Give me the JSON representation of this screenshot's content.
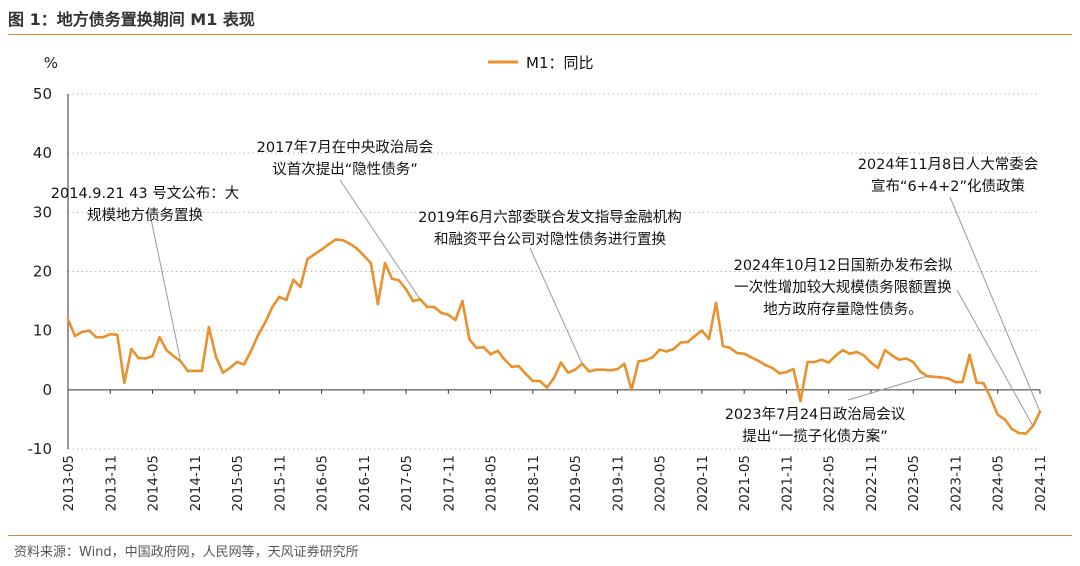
{
  "figure_title": "图 1：地方债务置换期间 M1 表现",
  "source": "资料来源：Wind，中国政府网，人民网等，天风证券研究所",
  "colors": {
    "series": "#e8912d",
    "rule": "#d08a3c",
    "grid": "#bbbbbb",
    "annotation_line": "#999999"
  },
  "chart_data": {
    "type": "line",
    "title": "",
    "xlabel": "",
    "ylabel": "%",
    "ylim": [
      -10,
      50
    ],
    "yticks": [
      50,
      40,
      30,
      20,
      10,
      0,
      -10
    ],
    "xticks": [
      "2013-05",
      "2013-11",
      "2014-05",
      "2014-11",
      "2015-05",
      "2015-11",
      "2016-05",
      "2016-11",
      "2017-05",
      "2017-11",
      "2018-05",
      "2018-11",
      "2019-05",
      "2019-11",
      "2020-05",
      "2020-11",
      "2021-05",
      "2021-11",
      "2022-05",
      "2022-11",
      "2023-05",
      "2023-11",
      "2024-05",
      "2024-11"
    ],
    "grid": "horizontal dotted",
    "legend": {
      "placement": "top-center",
      "entries": [
        "M1：同比"
      ]
    },
    "series": [
      {
        "name": "M1：同比",
        "x": [
          "2013-05",
          "2013-06",
          "2013-07",
          "2013-08",
          "2013-09",
          "2013-10",
          "2013-11",
          "2013-12",
          "2014-01",
          "2014-02",
          "2014-03",
          "2014-04",
          "2014-05",
          "2014-06",
          "2014-07",
          "2014-08",
          "2014-09",
          "2014-10",
          "2014-11",
          "2014-12",
          "2015-01",
          "2015-02",
          "2015-03",
          "2015-04",
          "2015-05",
          "2015-06",
          "2015-07",
          "2015-08",
          "2015-09",
          "2015-10",
          "2015-11",
          "2015-12",
          "2016-01",
          "2016-02",
          "2016-03",
          "2016-04",
          "2016-05",
          "2016-06",
          "2016-07",
          "2016-08",
          "2016-09",
          "2016-10",
          "2016-11",
          "2016-12",
          "2017-01",
          "2017-02",
          "2017-03",
          "2017-04",
          "2017-05",
          "2017-06",
          "2017-07",
          "2017-08",
          "2017-09",
          "2017-10",
          "2017-11",
          "2017-12",
          "2018-01",
          "2018-02",
          "2018-03",
          "2018-04",
          "2018-05",
          "2018-06",
          "2018-07",
          "2018-08",
          "2018-09",
          "2018-10",
          "2018-11",
          "2018-12",
          "2019-01",
          "2019-02",
          "2019-03",
          "2019-04",
          "2019-05",
          "2019-06",
          "2019-07",
          "2019-08",
          "2019-09",
          "2019-10",
          "2019-11",
          "2019-12",
          "2020-01",
          "2020-02",
          "2020-03",
          "2020-04",
          "2020-05",
          "2020-06",
          "2020-07",
          "2020-08",
          "2020-09",
          "2020-10",
          "2020-11",
          "2020-12",
          "2021-01",
          "2021-02",
          "2021-03",
          "2021-04",
          "2021-05",
          "2021-06",
          "2021-07",
          "2021-08",
          "2021-09",
          "2021-10",
          "2021-11",
          "2021-12",
          "2022-01",
          "2022-02",
          "2022-03",
          "2022-04",
          "2022-05",
          "2022-06",
          "2022-07",
          "2022-08",
          "2022-09",
          "2022-10",
          "2022-11",
          "2022-12",
          "2023-01",
          "2023-02",
          "2023-03",
          "2023-04",
          "2023-05",
          "2023-06",
          "2023-07",
          "2023-08",
          "2023-09",
          "2023-10",
          "2023-11",
          "2023-12",
          "2024-01",
          "2024-02",
          "2024-03",
          "2024-04",
          "2024-05",
          "2024-06",
          "2024-07",
          "2024-08",
          "2024-09",
          "2024-10",
          "2024-11"
        ],
        "values": [
          11.9,
          9.1,
          9.8,
          10.0,
          8.9,
          8.9,
          9.4,
          9.3,
          1.2,
          6.9,
          5.4,
          5.3,
          5.7,
          8.9,
          6.7,
          5.7,
          4.8,
          3.2,
          3.2,
          3.2,
          10.6,
          5.6,
          2.9,
          3.7,
          4.7,
          4.3,
          6.6,
          9.3,
          11.4,
          14.0,
          15.7,
          15.2,
          18.6,
          17.4,
          22.1,
          22.9,
          23.7,
          24.6,
          25.4,
          25.3,
          24.7,
          23.9,
          22.7,
          21.4,
          14.5,
          21.4,
          18.8,
          18.5,
          17.0,
          15.0,
          15.3,
          14.0,
          14.0,
          13.0,
          12.7,
          11.8,
          15.0,
          8.5,
          7.1,
          7.2,
          6.0,
          6.6,
          5.1,
          3.9,
          4.0,
          2.7,
          1.5,
          1.5,
          0.4,
          2.0,
          4.6,
          2.9,
          3.4,
          4.4,
          3.1,
          3.4,
          3.4,
          3.3,
          3.5,
          4.4,
          0.0,
          4.8,
          5.0,
          5.5,
          6.8,
          6.5,
          6.9,
          8.0,
          8.1,
          9.1,
          10.0,
          8.6,
          14.7,
          7.4,
          7.1,
          6.2,
          6.1,
          5.5,
          4.9,
          4.2,
          3.7,
          2.8,
          3.0,
          3.5,
          -1.9,
          4.7,
          4.7,
          5.1,
          4.6,
          5.8,
          6.7,
          6.1,
          6.4,
          5.8,
          4.6,
          3.7,
          6.7,
          5.8,
          5.1,
          5.3,
          4.7,
          3.1,
          2.3,
          2.2,
          2.1,
          1.9,
          1.3,
          1.3,
          5.9,
          1.2,
          1.1,
          -1.4,
          -4.2,
          -5.0,
          -6.6,
          -7.3,
          -7.4,
          -6.1,
          -3.7
        ]
      }
    ],
    "annotations": [
      {
        "id": "a1",
        "lines": [
          "2014.9.21 43 号文公布：大",
          "规模地方债务置换"
        ],
        "target_x": "2014-09",
        "target_y": 4.8
      },
      {
        "id": "a2",
        "lines": [
          "2017年7月在中央政治局会",
          "议首次提出“隐性债务”"
        ],
        "target_x": "2017-07",
        "target_y": 15.3
      },
      {
        "id": "a3",
        "lines": [
          "2019年6月六部委联合发文指导金融机构",
          "和融资平台公司对隐性债务进行置换"
        ],
        "target_x": "2019-06",
        "target_y": 4.4
      },
      {
        "id": "a4",
        "lines": [
          "2024年11月8日人大常委会",
          "宣布“6+4+2”化债政策"
        ],
        "target_x": "2024-11",
        "target_y": -3.7
      },
      {
        "id": "a5",
        "lines": [
          "2024年10月12日国新办发布会拟",
          "一次性增加较大规模债务限额置换",
          "地方政府存量隐性债务。"
        ],
        "target_x": "2024-10",
        "target_y": -6.1
      },
      {
        "id": "a6",
        "lines": [
          "2023年7月24日政治局会议",
          "提出“一揽子化债方案”"
        ],
        "target_x": "2023-07",
        "target_y": 2.3
      }
    ]
  }
}
